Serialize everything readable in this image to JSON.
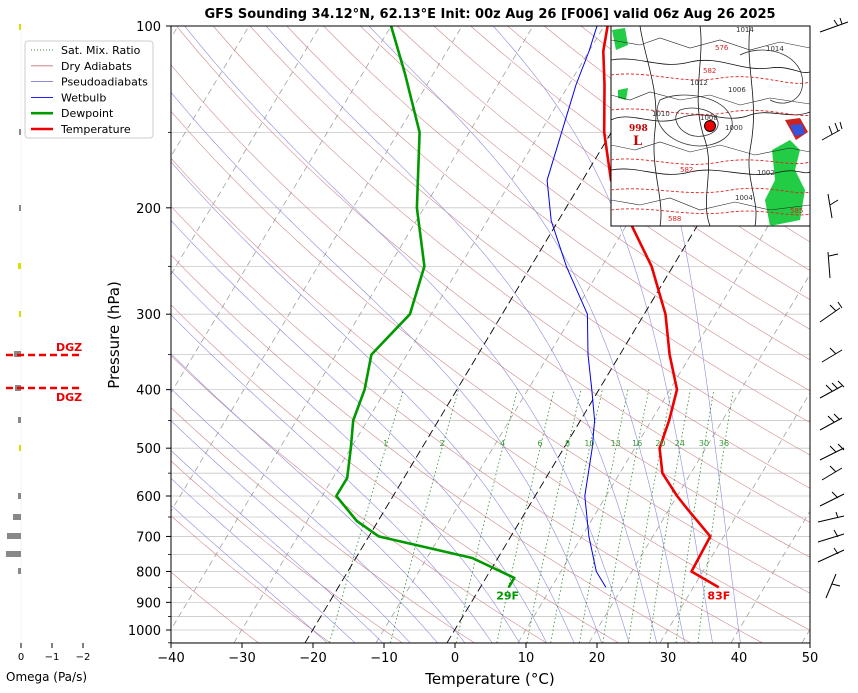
{
  "chart_data": {
    "type": "line",
    "title": "GFS Sounding 34.12°N, 62.13°E Init: 00z Aug 26 [F006] valid 06z Aug 26 2025",
    "xlabel": "Temperature (°C)",
    "ylabel": "Pressure (hPa)",
    "xlim": [
      -40,
      50
    ],
    "ylim": [
      1050,
      100
    ],
    "y_scale": "log",
    "skew": "skew-T",
    "grid": true,
    "legend_position": "top-left",
    "x_ticks": [
      "−40",
      "−30",
      "−20",
      "−10",
      "0",
      "10",
      "20",
      "30",
      "40",
      "50"
    ],
    "y_ticks": [
      "100",
      "200",
      "300",
      "400",
      "500",
      "600",
      "700",
      "800",
      "900",
      "1000"
    ],
    "legend": [
      {
        "label": "Sat. Mix. Ratio",
        "color": "#2e8b2e",
        "style": "dotted"
      },
      {
        "label": "Dry Adiabats",
        "color": "#c87070",
        "style": "solid"
      },
      {
        "label": "Pseudoadiabats",
        "color": "#7a7ad0",
        "style": "solid"
      },
      {
        "label": "Wetbulb",
        "color": "#0000ee",
        "style": "solid"
      },
      {
        "label": "Dewpoint",
        "color": "#009900",
        "style": "solid"
      },
      {
        "label": "Temperature",
        "color": "#ee0000",
        "style": "solid"
      }
    ],
    "series": [
      {
        "name": "Temperature",
        "color": "#ee0000",
        "points": [
          [
            33.6,
            850
          ],
          [
            28.4,
            800
          ],
          [
            28.1,
            700
          ],
          [
            22.5,
            630
          ],
          [
            20,
            600
          ],
          [
            16,
            550
          ],
          [
            13.5,
            500
          ],
          [
            12.5,
            450
          ],
          [
            11,
            400
          ],
          [
            7,
            350
          ],
          [
            3,
            300
          ],
          [
            -3,
            250
          ],
          [
            -10,
            210
          ],
          [
            -16,
            180
          ],
          [
            -21,
            150
          ],
          [
            -25,
            125
          ],
          [
            -28,
            110
          ],
          [
            -29.5,
            100
          ]
        ]
      },
      {
        "name": "Dewpoint",
        "color": "#009900",
        "points": [
          [
            4,
            850
          ],
          [
            4,
            820
          ],
          [
            -3.6,
            760
          ],
          [
            -18.6,
            700
          ],
          [
            -23,
            660
          ],
          [
            -28,
            600
          ],
          [
            -28,
            560
          ],
          [
            -30,
            500
          ],
          [
            -32,
            450
          ],
          [
            -33,
            400
          ],
          [
            -35,
            350
          ],
          [
            -33,
            300
          ],
          [
            -35,
            250
          ],
          [
            -41,
            200
          ],
          [
            -47,
            150
          ],
          [
            -54,
            120
          ],
          [
            -60,
            100
          ]
        ]
      },
      {
        "name": "Wetbulb",
        "color": "#0000ee",
        "points": [
          [
            17.7,
            850
          ],
          [
            15,
            800
          ],
          [
            11,
            700
          ],
          [
            7,
            600
          ],
          [
            4,
            500
          ],
          [
            2,
            450
          ],
          [
            -1,
            400
          ],
          [
            -4.5,
            350
          ],
          [
            -8,
            300
          ],
          [
            -15,
            250
          ],
          [
            -21,
            210
          ],
          [
            -25,
            180
          ],
          [
            -27,
            150
          ],
          [
            -29,
            125
          ],
          [
            -30,
            110
          ],
          [
            -31,
            100
          ]
        ]
      }
    ],
    "annotations": {
      "surface_temp": "83F",
      "surface_dewpoint": "29F",
      "mixing_ratio_labels": [
        "1",
        "2",
        "4",
        "6",
        "8",
        "10",
        "13",
        "16",
        "20",
        "24",
        "30",
        "36"
      ]
    },
    "dgz_label": "DGZ",
    "omega_panel": {
      "xlabel": "Omega (Pa/s)",
      "ticks": [
        "0",
        "−1",
        "−2"
      ]
    },
    "inset_map": {
      "low_label": "L",
      "low_value": "998",
      "isobar_labels": [
        "1014",
        "1014",
        "1012",
        "1010",
        "1008",
        "1006",
        "1004",
        "1002",
        "1000"
      ],
      "thickness_labels": [
        "576",
        "582",
        "582",
        "588",
        "585"
      ]
    }
  }
}
